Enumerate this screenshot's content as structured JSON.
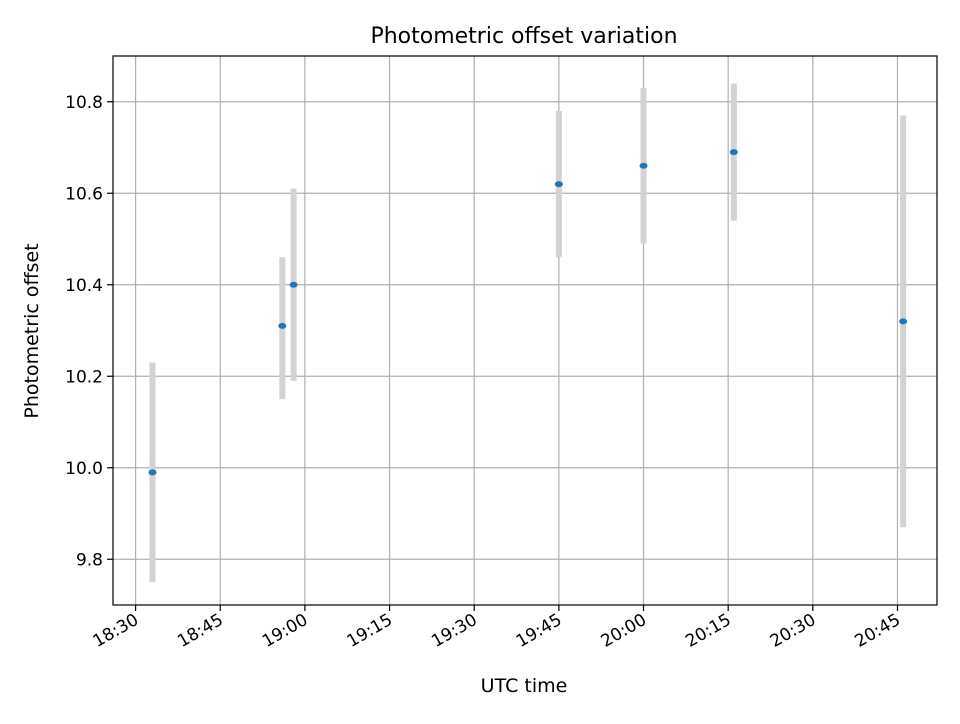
{
  "chart_data": {
    "type": "scatter",
    "title": "Photometric offset variation",
    "xlabel": "UTC time",
    "ylabel": "Photometric offset",
    "xlim": [
      "18:26",
      "20:52"
    ],
    "ylim": [
      9.7,
      10.9
    ],
    "x_ticks": [
      "18:30",
      "18:45",
      "19:00",
      "19:15",
      "19:30",
      "19:45",
      "20:00",
      "20:15",
      "20:30",
      "20:45"
    ],
    "y_ticks": [
      "9.8",
      "10.0",
      "10.2",
      "10.4",
      "10.6",
      "10.8"
    ],
    "grid": true,
    "points": [
      {
        "x": "18:33",
        "y": 9.99,
        "err_low": 9.75,
        "err_high": 10.23
      },
      {
        "x": "18:56",
        "y": 10.31,
        "err_low": 10.15,
        "err_high": 10.46
      },
      {
        "x": "18:58",
        "y": 10.4,
        "err_low": 10.19,
        "err_high": 10.61
      },
      {
        "x": "19:45",
        "y": 10.62,
        "err_low": 10.46,
        "err_high": 10.78
      },
      {
        "x": "20:00",
        "y": 10.66,
        "err_low": 10.49,
        "err_high": 10.83
      },
      {
        "x": "20:16",
        "y": 10.69,
        "err_low": 10.54,
        "err_high": 10.84
      },
      {
        "x": "20:46",
        "y": 10.32,
        "err_low": 9.87,
        "err_high": 10.77
      }
    ],
    "colors": {
      "point": "#1f77b4",
      "errorbar": "#d3d3d3",
      "grid": "#b0b0b0",
      "axes": "#000000"
    }
  }
}
